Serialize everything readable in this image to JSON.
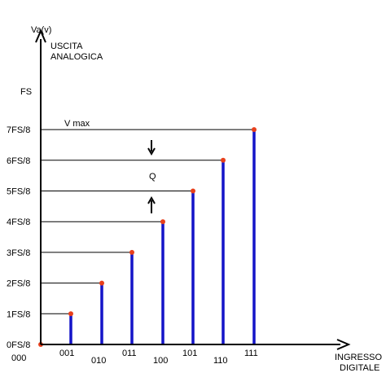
{
  "chart_data": {
    "type": "bar",
    "x_title_lines": [
      "INGRESSO",
      "DIGITALE"
    ],
    "y_unit_label": "Va(v)",
    "y_title_lines": [
      "USCITA",
      "ANALOGICA"
    ],
    "fs_label": "FS",
    "categories": [
      "000",
      "001",
      "010",
      "011",
      "100",
      "101",
      "110",
      "111"
    ],
    "y_tick_labels": [
      "0FS/8",
      "1FS/8",
      "2FS/8",
      "3FS/8",
      "4FS/8",
      "5FS/8",
      "6FS/8",
      "7FS/8"
    ],
    "values": [
      0,
      1,
      2,
      3,
      4,
      5,
      6,
      7
    ],
    "value_unit": "FS/8",
    "ylim": [
      0,
      8
    ],
    "annotations": {
      "vmax_label": "V max",
      "q_label": "Q"
    },
    "colors": {
      "bars": "#1414c8",
      "points": "#e8401c",
      "axes": "#000000",
      "guide_lines": "#000000"
    },
    "grid": false,
    "legend": "none"
  }
}
